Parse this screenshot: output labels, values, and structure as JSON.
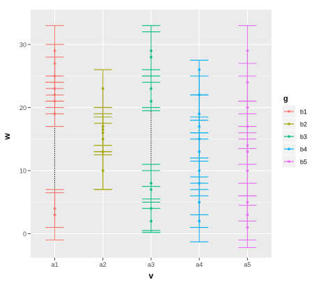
{
  "chart_data": {
    "type": "scatter",
    "subtype": "points-with-error-bars",
    "xlabel": "v",
    "ylabel": "w",
    "categories": [
      "a1",
      "a2",
      "a3",
      "a4",
      "a5"
    ],
    "ylim": [
      -3.8,
      35.5
    ],
    "yticks": [
      "0",
      "10",
      "20",
      "30"
    ],
    "ytick_values": [
      0,
      10,
      20,
      30
    ],
    "grid": true,
    "legend": {
      "title": "g",
      "position": "right",
      "entries": [
        "b1",
        "b2",
        "b3",
        "b4",
        "b5"
      ]
    },
    "colors": {
      "b1": "#F8766D",
      "b2": "#A3A500",
      "b3": "#00BF7D",
      "b4": "#00B0F6",
      "b5": "#E76BF3",
      "panel": "#EBEBEB",
      "gridline": "#FFFFFF",
      "connector": "#000000"
    },
    "series": [
      {
        "name": "b1",
        "category": "a1",
        "points": [
          {
            "y": 29,
            "lo": 25,
            "hi": 33
          },
          {
            "y": 27,
            "lo": 24,
            "hi": 30
          },
          {
            "y": 25,
            "lo": 23,
            "hi": 28
          },
          {
            "y": 23,
            "lo": 21,
            "hi": 25
          },
          {
            "y": 22,
            "lo": 19,
            "hi": 24
          },
          {
            "y": 21,
            "lo": 20,
            "hi": 22
          },
          {
            "y": 19,
            "lo": 17,
            "hi": 21
          },
          {
            "y": 4,
            "lo": -1,
            "hi": 7
          },
          {
            "y": 3,
            "lo": 1,
            "hi": 6.5
          }
        ]
      },
      {
        "name": "b2",
        "category": "a2",
        "points": [
          {
            "y": 23,
            "lo": 20,
            "hi": 26
          },
          {
            "y": 17,
            "lo": 13,
            "hi": 20
          },
          {
            "y": 16.5,
            "lo": 14,
            "hi": 19
          },
          {
            "y": 16,
            "lo": 13,
            "hi": 18.5
          },
          {
            "y": 15,
            "lo": 12.5,
            "hi": 17.5
          },
          {
            "y": 13,
            "lo": 7,
            "hi": 14
          },
          {
            "y": 10,
            "lo": 7,
            "hi": 13
          }
        ]
      },
      {
        "name": "b3",
        "category": "a3",
        "points": [
          {
            "y": 29,
            "lo": 25,
            "hi": 33
          },
          {
            "y": 28,
            "lo": 25,
            "hi": 32
          },
          {
            "y": 23,
            "lo": 20,
            "hi": 26
          },
          {
            "y": 21,
            "lo": 19.5,
            "hi": 24
          },
          {
            "y": 8,
            "lo": 5,
            "hi": 11
          },
          {
            "y": 7,
            "lo": 4,
            "hi": 10
          },
          {
            "y": 4,
            "lo": 0.5,
            "hi": 7.5
          },
          {
            "y": 2,
            "lo": 0.2,
            "hi": 5.5
          }
        ]
      },
      {
        "name": "b4",
        "category": "a4",
        "points": [
          {
            "y": 26,
            "lo": 22,
            "hi": 27.5
          },
          {
            "y": 22,
            "lo": 18,
            "hi": 25
          },
          {
            "y": 19,
            "lo": 16,
            "hi": 22
          },
          {
            "y": 17,
            "lo": 15,
            "hi": 18.5
          },
          {
            "y": 15,
            "lo": 12,
            "hi": 18
          },
          {
            "y": 13,
            "lo": 9,
            "hi": 16
          },
          {
            "y": 10,
            "lo": 8,
            "hi": 12
          },
          {
            "y": 8,
            "lo": 6,
            "hi": 11.5
          },
          {
            "y": 5,
            "lo": 1,
            "hi": 7
          },
          {
            "y": 2,
            "lo": -1.3,
            "hi": 3
          }
        ]
      },
      {
        "name": "b5",
        "category": "a5",
        "points": [
          {
            "y": 29,
            "lo": 27,
            "hi": 33
          },
          {
            "y": 24,
            "lo": 21,
            "hi": 27
          },
          {
            "y": 20,
            "lo": 17,
            "hi": 25
          },
          {
            "y": 17,
            "lo": 15,
            "hi": 21
          },
          {
            "y": 14,
            "lo": 11,
            "hi": 19
          },
          {
            "y": 13,
            "lo": 8,
            "hi": 16
          },
          {
            "y": 10,
            "lo": 6,
            "hi": 13.5
          },
          {
            "y": 5,
            "lo": 2,
            "hi": 8
          },
          {
            "y": 3,
            "lo": -1,
            "hi": 6
          },
          {
            "y": 1,
            "lo": -2.2,
            "hi": 4.5
          }
        ]
      }
    ]
  }
}
